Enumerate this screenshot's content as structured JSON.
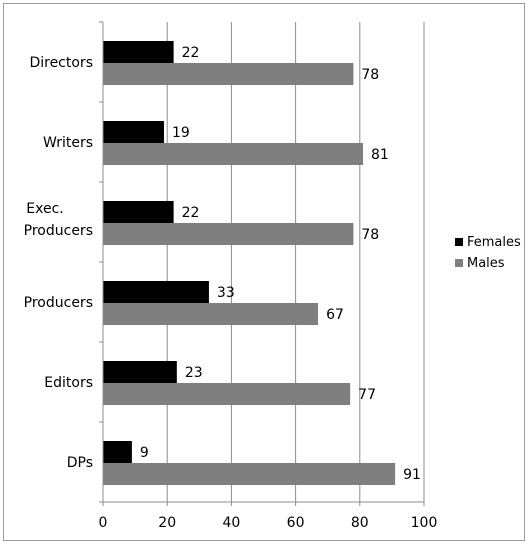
{
  "chart_data": {
    "type": "bar",
    "orientation": "horizontal",
    "categories": [
      "Directors",
      "Writers",
      "Exec. Producers",
      "Producers",
      "Editors",
      "DPs"
    ],
    "series": [
      {
        "name": "Females",
        "values": [
          22,
          19,
          22,
          33,
          23,
          9
        ],
        "color": "#000000"
      },
      {
        "name": "Males",
        "values": [
          78,
          81,
          78,
          67,
          77,
          91
        ],
        "color": "#7f7f7f"
      }
    ],
    "xlim": [
      0,
      100
    ],
    "xticks": [
      0,
      20,
      40,
      60,
      80,
      100
    ],
    "title": "",
    "xlabel": "",
    "ylabel": "",
    "grid": "vertical",
    "legend": "right"
  }
}
